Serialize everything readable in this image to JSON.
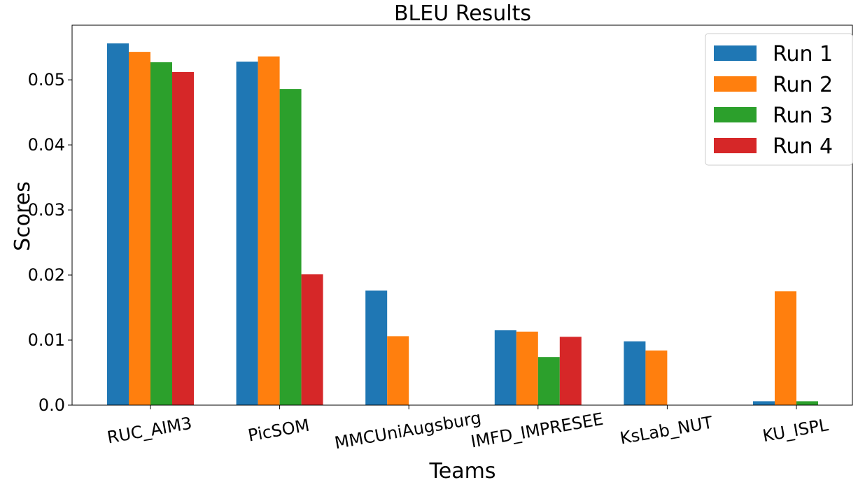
{
  "chart_data": {
    "type": "bar",
    "title": "BLEU Results",
    "xlabel": "Teams",
    "ylabel": "Scores",
    "categories": [
      "RUC_AIM3",
      "PicSOM",
      "MMCUniAugsburg",
      "IMFD_IMPRESEE",
      "KsLab_NUT",
      "KU_ISPL"
    ],
    "ylim": [
      0,
      0.0584
    ],
    "yticks": [
      0.0,
      0.01,
      0.02,
      0.03,
      0.04,
      0.05
    ],
    "ytick_labels": [
      "0.0",
      "0.01",
      "0.02",
      "0.03",
      "0.04",
      "0.05"
    ],
    "grid": false,
    "legend_position": "top-right",
    "series": [
      {
        "name": "Run 1",
        "color": "#1f77b4",
        "values": [
          0.0556,
          0.0528,
          0.0176,
          0.0115,
          0.0098,
          0.0006
        ]
      },
      {
        "name": "Run 2",
        "color": "#ff7f0e",
        "values": [
          0.0543,
          0.0536,
          0.0106,
          0.0113,
          0.0084,
          0.0175
        ]
      },
      {
        "name": "Run 3",
        "color": "#2ca02c",
        "values": [
          0.0527,
          0.0486,
          0.0,
          0.0074,
          0.0,
          0.0006
        ]
      },
      {
        "name": "Run 4",
        "color": "#d62728",
        "values": [
          0.0512,
          0.0201,
          0.0,
          0.0105,
          0.0,
          0.0
        ]
      }
    ]
  }
}
